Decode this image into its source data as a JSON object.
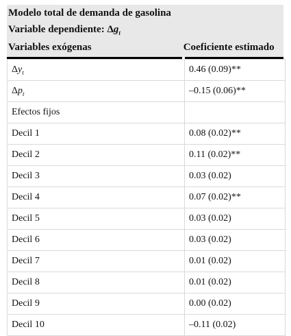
{
  "header": {
    "title": "Modelo total de demanda de gasolina",
    "dependent_prefix": "Variable dependiente: Δ",
    "dependent_var": "g",
    "dependent_sub": "t",
    "col_variables": "Variables exógenas",
    "col_coef": "Coeficiente estimado"
  },
  "rows": [
    {
      "delta": "Δ",
      "var": "y",
      "sub": "t",
      "coef": "0.46 (0.09)**"
    },
    {
      "delta": "Δ",
      "var": "p",
      "sub": "t",
      "coef": "–0.15 (0.06)**"
    },
    {
      "label": "Efectos fijos",
      "coef": ""
    },
    {
      "label": "Decil 1",
      "coef": "0.08 (0.02)**"
    },
    {
      "label": "Decil 2",
      "coef": "0.11 (0.02)**"
    },
    {
      "label": "Decil 3",
      "coef": "0.03 (0.02)"
    },
    {
      "label": "Decil 4",
      "coef": "0.07 (0.02)**"
    },
    {
      "label": "Decil 5",
      "coef": "0.03 (0.02)"
    },
    {
      "label": "Decil 6",
      "coef": "0.03 (0.02)"
    },
    {
      "label": "Decil 7",
      "coef": "0.01 (0.02)"
    },
    {
      "label": "Decil 8",
      "coef": "0.01 (0.02)"
    },
    {
      "label": "Decil 9",
      "coef": "0.00 (0.02)"
    },
    {
      "label": "Decil 10",
      "coef": "–0.11 (0.02)"
    }
  ]
}
